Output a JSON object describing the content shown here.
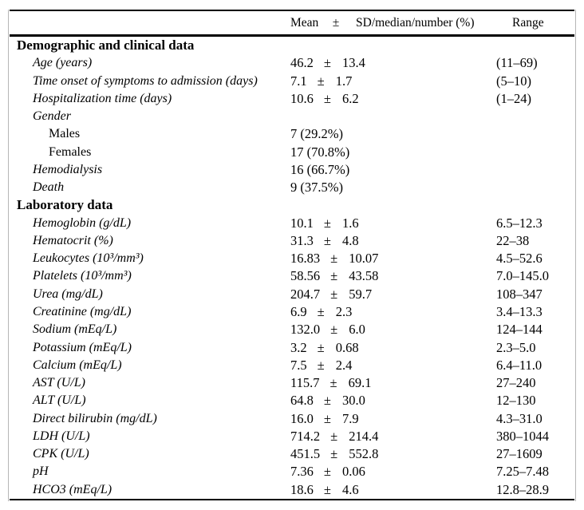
{
  "table": {
    "header": {
      "mean": "Mean",
      "pm": "±",
      "sd": "SD/median/number (%)",
      "range": "Range"
    },
    "rows": [
      {
        "type": "section",
        "label": "Demographic and clinical data"
      },
      {
        "type": "data",
        "label": "Age (years)",
        "indent": 1,
        "italic": true,
        "mean": "46.2",
        "pm": "±",
        "sd": "13.4",
        "range": "(11–69)"
      },
      {
        "type": "data",
        "label": "Time onset of symptoms to admission (days)",
        "indent": 1,
        "italic": true,
        "mean": "7.1",
        "pm": "±",
        "sd": "1.7",
        "range": "(5–10)"
      },
      {
        "type": "data",
        "label": "Hospitalization time (days)",
        "indent": 1,
        "italic": true,
        "mean": "10.6",
        "pm": "±",
        "sd": "6.2",
        "range": "(1–24)"
      },
      {
        "type": "data",
        "label": "Gender",
        "indent": 1,
        "italic": true
      },
      {
        "type": "data",
        "label": "Males",
        "indent": 2,
        "italic": false,
        "value": "7 (29.2%)"
      },
      {
        "type": "data",
        "label": "Females",
        "indent": 2,
        "italic": false,
        "value": "17 (70.8%)"
      },
      {
        "type": "data",
        "label": "Hemodialysis",
        "indent": 1,
        "italic": true,
        "value": "16 (66.7%)"
      },
      {
        "type": "data",
        "label": "Death",
        "indent": 1,
        "italic": true,
        "value": "9 (37.5%)"
      },
      {
        "type": "section",
        "label": "Laboratory data"
      },
      {
        "type": "data",
        "label": "Hemoglobin (g/dL)",
        "indent": 1,
        "italic": true,
        "mean": "10.1",
        "pm": "±",
        "sd": "1.6",
        "range": "6.5–12.3"
      },
      {
        "type": "data",
        "label": "Hematocrit (%)",
        "indent": 1,
        "italic": true,
        "mean": "31.3",
        "pm": "±",
        "sd": "4.8",
        "range": "22–38"
      },
      {
        "type": "data",
        "label": "Leukocytes (10³/mm³)",
        "indent": 1,
        "italic": true,
        "mean": "16.83",
        "pm": "±",
        "sd": "10.07",
        "range": "4.5–52.6"
      },
      {
        "type": "data",
        "label": "Platelets (10³/mm³)",
        "indent": 1,
        "italic": true,
        "mean": "58.56",
        "pm": "±",
        "sd": "43.58",
        "range": "7.0–145.0"
      },
      {
        "type": "data",
        "label": "Urea (mg/dL)",
        "indent": 1,
        "italic": true,
        "mean": "204.7",
        "pm": "±",
        "sd": "59.7",
        "range": "108–347"
      },
      {
        "type": "data",
        "label": "Creatinine (mg/dL)",
        "indent": 1,
        "italic": true,
        "mean": "6.9",
        "pm": "±",
        "sd": "2.3",
        "range": "3.4–13.3"
      },
      {
        "type": "data",
        "label": "Sodium (mEq/L)",
        "indent": 1,
        "italic": true,
        "mean": "132.0",
        "pm": "±",
        "sd": "6.0",
        "range": "124–144"
      },
      {
        "type": "data",
        "label": "Potassium (mEq/L)",
        "indent": 1,
        "italic": true,
        "mean": "3.2",
        "pm": "±",
        "sd": "0.68",
        "range": "2.3–5.0"
      },
      {
        "type": "data",
        "label": "Calcium (mEq/L)",
        "indent": 1,
        "italic": true,
        "mean": "7.5",
        "pm": "±",
        "sd": "2.4",
        "range": "6.4–11.0"
      },
      {
        "type": "data",
        "label": "AST (U/L)",
        "indent": 1,
        "italic": true,
        "mean": "115.7",
        "pm": "±",
        "sd": "69.1",
        "range": "27–240"
      },
      {
        "type": "data",
        "label": "ALT (U/L)",
        "indent": 1,
        "italic": true,
        "mean": "64.8",
        "pm": "±",
        "sd": "30.0",
        "range": "12–130"
      },
      {
        "type": "data",
        "label": "Direct bilirubin (mg/dL)",
        "indent": 1,
        "italic": true,
        "mean": "16.0",
        "pm": "±",
        "sd": "7.9",
        "range": "4.3–31.0"
      },
      {
        "type": "data",
        "label": "LDH (U/L)",
        "indent": 1,
        "italic": true,
        "mean": "714.2",
        "pm": "±",
        "sd": "214.4",
        "range": "380–1044"
      },
      {
        "type": "data",
        "label": "CPK (U/L)",
        "indent": 1,
        "italic": true,
        "mean": "451.5",
        "pm": "±",
        "sd": "552.8",
        "range": "27–1609"
      },
      {
        "type": "data",
        "label": "pH",
        "indent": 1,
        "italic": true,
        "mean": "7.36",
        "pm": "±",
        "sd": "0.06",
        "range": "7.25–7.48"
      },
      {
        "type": "data",
        "label": "HCO3 (mEq/L)",
        "indent": 1,
        "italic": true,
        "mean": "18.6",
        "pm": "±",
        "sd": "4.6",
        "range": "12.8–28.9"
      }
    ]
  }
}
